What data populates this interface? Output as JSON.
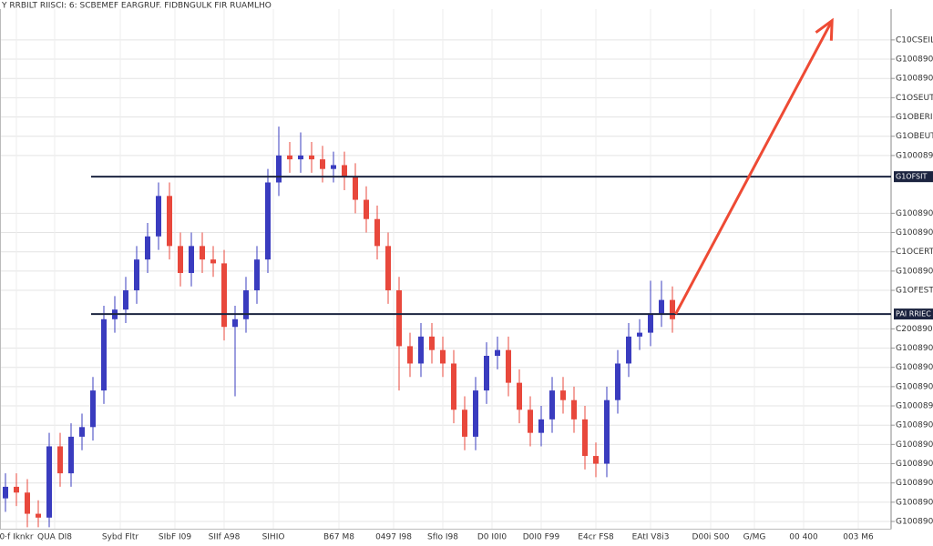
{
  "chart_data": {
    "type": "candlestick",
    "title": "Y RRBILT RIISCI: 6: SCBEMEF  EARGRUF. FIDBNGULK FIR RUAMLHO",
    "x": [
      0,
      1,
      2,
      3,
      4,
      5,
      6,
      7,
      8,
      9,
      10,
      11,
      12,
      13,
      14,
      15,
      16,
      17,
      18,
      19,
      20,
      21,
      22,
      23,
      24,
      25,
      26,
      27,
      28,
      29,
      30,
      31,
      32,
      33,
      34,
      35,
      36,
      37,
      38,
      39,
      40,
      41,
      42,
      43,
      44,
      45,
      46,
      47,
      48,
      49,
      50,
      51,
      52,
      53,
      54,
      55,
      56,
      57,
      58,
      59,
      60,
      61
    ],
    "open": [
      1.2,
      1.8,
      1.5,
      0.4,
      0.2,
      3.9,
      2.5,
      4.4,
      4.9,
      6.8,
      10.5,
      11,
      12,
      13.6,
      14.8,
      16.9,
      14.3,
      12.9,
      14.3,
      13.6,
      13.4,
      10.1,
      10.5,
      12,
      13.6,
      17.6,
      19,
      18.8,
      19,
      18.8,
      18.3,
      18.5,
      17.9,
      16.7,
      15.7,
      14.3,
      12,
      9.1,
      8.2,
      9.6,
      8.9,
      8.2,
      5.8,
      4.4,
      6.8,
      8.6,
      8.9,
      7.2,
      5.8,
      4.6,
      5.3,
      6.8,
      6.3,
      5.3,
      3.4,
      3,
      6.3,
      8.2,
      9.6,
      9.8,
      10.8,
      11.5
    ],
    "high": [
      2.5,
      2.5,
      2.2,
      1.1,
      4.6,
      4.6,
      5.1,
      5.6,
      7.5,
      11.2,
      11.7,
      12.7,
      14.3,
      15.5,
      17.6,
      17.6,
      15,
      15,
      15,
      14.3,
      14.1,
      11.2,
      12.7,
      14.3,
      18.3,
      20.5,
      19.7,
      20.2,
      19.7,
      19.5,
      19.2,
      19.2,
      18.6,
      17.4,
      16.4,
      15,
      12.7,
      9.8,
      10.3,
      10.3,
      9.6,
      8.9,
      6.5,
      7.5,
      9.3,
      9.6,
      9.6,
      7.9,
      6.5,
      6,
      7.5,
      7.5,
      7,
      6,
      4.1,
      7,
      8.9,
      10.3,
      10.5,
      12.5,
      12.5,
      12.2
    ],
    "low": [
      0.5,
      0.8,
      -0.3,
      -0.3,
      -0.3,
      1.8,
      1.8,
      3.7,
      4.2,
      6.1,
      9.8,
      10.3,
      11.3,
      12.9,
      14.1,
      13.6,
      12.2,
      12.2,
      12.9,
      12.7,
      9.4,
      6.5,
      9.8,
      11.3,
      12.9,
      16.9,
      18.1,
      18.1,
      18.1,
      17.6,
      17.6,
      17.2,
      16,
      15,
      13.6,
      11.3,
      6.8,
      7.5,
      7.5,
      8.2,
      7.5,
      5.1,
      3.7,
      3.7,
      6.1,
      7.9,
      6.5,
      5.1,
      3.9,
      3.9,
      4.6,
      5.6,
      4.6,
      2.7,
      2.3,
      2.3,
      5.6,
      7.5,
      8.9,
      9.1,
      10.1,
      9.8
    ],
    "close": [
      1.8,
      1.5,
      0.4,
      0.2,
      3.9,
      2.5,
      4.4,
      4.9,
      6.8,
      10.5,
      11,
      12,
      13.6,
      14.8,
      16.9,
      14.3,
      12.9,
      14.3,
      13.6,
      13.4,
      10.1,
      10.5,
      12,
      13.6,
      17.6,
      19,
      18.8,
      19,
      18.8,
      18.3,
      18.5,
      17.9,
      16.7,
      15.7,
      14.3,
      12,
      9.1,
      8.2,
      9.6,
      8.9,
      8.2,
      5.8,
      4.4,
      6.8,
      8.6,
      8.9,
      7.2,
      5.8,
      4.6,
      5.3,
      6.8,
      6.3,
      5.3,
      3.4,
      3,
      6.3,
      8.2,
      9.6,
      9.8,
      10.8,
      11.5,
      10.5
    ],
    "up_color": "#3a3cbf",
    "down_color": "#e8483c",
    "xlim": [
      -0.5,
      81
    ],
    "xticks": [
      {
        "value": 1,
        "label": "0·f Iknkr"
      },
      {
        "value": 4.5,
        "label": "QUA DI8"
      },
      {
        "value": 10.5,
        "label": "Sybd Fltr"
      },
      {
        "value": 15.5,
        "label": "SIbF I09"
      },
      {
        "value": 20,
        "label": "SIIf A98"
      },
      {
        "value": 24.5,
        "label": "SIHIO"
      },
      {
        "value": 30.5,
        "label": "B67 M8"
      },
      {
        "value": 35.5,
        "label": "0497 I98"
      },
      {
        "value": 40,
        "label": "SfIo I98"
      },
      {
        "value": 44.5,
        "label": "D0 I0I0"
      },
      {
        "value": 49,
        "label": "D0I0 F99"
      },
      {
        "value": 54,
        "label": "E4cr FS8"
      },
      {
        "value": 59,
        "label": "EAtI V8i3"
      },
      {
        "value": 64.5,
        "label": "D00i S00"
      },
      {
        "value": 68.5,
        "label": "G/MG"
      },
      {
        "value": 73,
        "label": "00 400"
      },
      {
        "value": 78,
        "label": "003 M6"
      }
    ],
    "ylim": [
      -0.4,
      26.6
    ],
    "yticks": [
      {
        "value": 0,
        "label": "G100890"
      },
      {
        "value": 1,
        "label": "G100890"
      },
      {
        "value": 2,
        "label": "G100890"
      },
      {
        "value": 3,
        "label": "G100890"
      },
      {
        "value": 4,
        "label": "G100890"
      },
      {
        "value": 5,
        "label": "G100890"
      },
      {
        "value": 6,
        "label": "G1000890"
      },
      {
        "value": 7,
        "label": "G100890"
      },
      {
        "value": 8,
        "label": "G100890"
      },
      {
        "value": 9,
        "label": "G100890"
      },
      {
        "value": 10,
        "label": "C200890"
      },
      {
        "value": 12,
        "label": "G1OFESTL"
      },
      {
        "value": 13,
        "label": "G100890"
      },
      {
        "value": 14,
        "label": "C1OCERTL"
      },
      {
        "value": 15,
        "label": "G100890"
      },
      {
        "value": 16,
        "label": "G100890"
      },
      {
        "value": 19,
        "label": "G1000890"
      },
      {
        "value": 20,
        "label": "G1OBEUTL"
      },
      {
        "value": 21,
        "label": "G1OBERIL"
      },
      {
        "value": 22,
        "label": "C1OSEUTL"
      },
      {
        "value": 23,
        "label": "G100890"
      },
      {
        "value": 24,
        "label": "G100890"
      },
      {
        "value": 25,
        "label": "C10CSEIL"
      }
    ],
    "levels": [
      {
        "value": 17.9,
        "label": "G1OFSIT"
      },
      {
        "value": 10.77,
        "label": "PAI RRIEC"
      }
    ],
    "arrow": {
      "from": [
        61.3,
        10.77
      ],
      "to": [
        75.6,
        26
      ],
      "color": "#ee4a34"
    },
    "grid": true
  }
}
